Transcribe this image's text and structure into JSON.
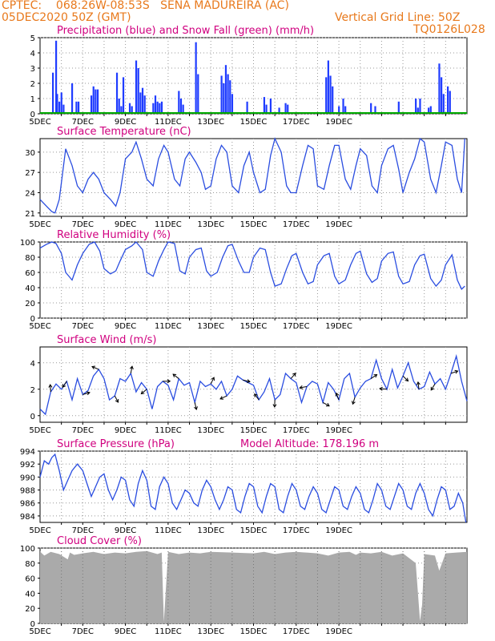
{
  "header": {
    "line1": "CPTEC:    068:26W-08:53S   SENA MADUREIRA (AC)",
    "line2": "05DEC2020 50Z (GMT)",
    "grid_note": "Vertical Grid Line: 50Z",
    "code": "TQ0126L028"
  },
  "x_dates": [
    "5DEC",
    "7DEC",
    "9DEC",
    "11DEC",
    "13DEC",
    "15DEC",
    "17DEC",
    "19DEC"
  ],
  "chart_data": [
    {
      "type": "bar",
      "title": "Precipitation (blue) and Snow Fall (green) (mm/h)",
      "ylim": [
        0,
        5
      ],
      "yticks": [
        0,
        1,
        2,
        3,
        4,
        5
      ],
      "grid": true,
      "series": [
        {
          "color": "#1f3cff",
          "x": [
            0.6,
            0.75,
            0.8,
            0.9,
            1.0,
            1.1,
            1.5,
            1.7,
            1.8,
            2.4,
            2.5,
            2.6,
            2.7,
            3.6,
            3.7,
            3.8,
            3.9,
            4.2,
            4.3,
            4.5,
            4.6,
            4.7,
            4.8,
            4.9,
            5.3,
            5.4,
            5.5,
            5.6,
            5.7,
            6.5,
            6.6,
            6.7,
            7.3,
            7.4,
            8.5,
            8.6,
            8.7,
            8.8,
            8.9,
            9.0,
            9.7,
            10.5,
            10.6,
            10.8,
            11.2,
            11.5,
            11.6,
            13.4,
            13.5,
            13.6,
            13.7,
            14.0,
            14.2,
            14.3,
            15.5,
            15.7,
            16.8,
            17.6,
            17.7,
            17.8,
            18.2,
            18.3,
            18.7,
            18.8,
            18.9,
            19.1,
            19.2
          ],
          "values": [
            2.7,
            4.8,
            1.3,
            0.8,
            1.4,
            0.6,
            2.0,
            0.8,
            0.8,
            1.2,
            1.8,
            1.6,
            1.6,
            2.7,
            1.0,
            0.5,
            2.4,
            0.7,
            0.5,
            3.5,
            3.0,
            1.4,
            1.7,
            1.2,
            0.7,
            1.2,
            0.8,
            0.7,
            0.8,
            1.5,
            1.0,
            0.6,
            4.7,
            2.6,
            2.5,
            2.0,
            3.2,
            2.6,
            2.2,
            1.3,
            0.8,
            1.1,
            0.6,
            1.0,
            0.4,
            0.7,
            0.6,
            2.4,
            3.5,
            2.5,
            1.8,
            0.5,
            1.0,
            0.5,
            0.7,
            0.5,
            0.8,
            1.0,
            0.4,
            1.0,
            0.4,
            0.5,
            3.3,
            2.4,
            1.3,
            1.8,
            1.5
          ]
        },
        {
          "color": "#00aa00",
          "values": [
            0
          ]
        }
      ]
    },
    {
      "type": "line",
      "title": "Surface Temperature (nC)",
      "ylim": [
        20.5,
        32
      ],
      "yticks": [
        21,
        24,
        27,
        30
      ],
      "series": [
        {
          "color": "#2a4de0",
          "x": [
            0,
            0.3,
            0.55,
            0.7,
            0.9,
            1.2,
            1.5,
            1.75,
            2.0,
            2.25,
            2.5,
            2.75,
            3.0,
            3.3,
            3.55,
            3.75,
            4.0,
            4.3,
            4.5,
            4.75,
            5.0,
            5.3,
            5.55,
            5.8,
            6.0,
            6.3,
            6.55,
            6.8,
            7.0,
            7.3,
            7.55,
            7.75,
            8.0,
            8.25,
            8.5,
            8.75,
            9.0,
            9.3,
            9.55,
            9.8,
            10.0,
            10.3,
            10.55,
            10.8,
            11.0,
            11.3,
            11.55,
            11.75,
            12.0,
            12.3,
            12.55,
            12.8,
            13.0,
            13.3,
            13.55,
            13.8,
            14.0,
            14.3,
            14.55,
            14.8,
            15.0,
            15.3,
            15.55,
            15.8,
            16.0,
            16.3,
            16.55,
            16.8,
            17.0,
            17.3,
            17.55,
            17.8,
            18.0,
            18.3,
            18.55,
            18.8,
            19.0,
            19.3,
            19.55,
            19.75,
            19.9
          ],
          "values": [
            23,
            22,
            21.2,
            21,
            23,
            30.5,
            28,
            25,
            24,
            26,
            27,
            26,
            24,
            23,
            22,
            24,
            29,
            30,
            31.5,
            29,
            26,
            25,
            29,
            31,
            30,
            26,
            25,
            29,
            30,
            28.5,
            27,
            24.5,
            25,
            29,
            31,
            30,
            25,
            24,
            28,
            30,
            27,
            24,
            24.5,
            29.5,
            32,
            30,
            25,
            24,
            24,
            28,
            31,
            30.5,
            25,
            24.5,
            28,
            31,
            31,
            26,
            24.5,
            28,
            30.5,
            29.5,
            25,
            24,
            28,
            30.5,
            31,
            27.5,
            24,
            27,
            29,
            32,
            31.5,
            26,
            24,
            28,
            31.5,
            31,
            26,
            24,
            32
          ]
        }
      ]
    },
    {
      "type": "line",
      "title": "Relative Humidity (%)",
      "ylim": [
        0,
        100
      ],
      "yticks": [
        0,
        20,
        40,
        60,
        80,
        100
      ],
      "series": [
        {
          "color": "#2a4de0",
          "x": [
            0,
            0.3,
            0.55,
            0.75,
            1.0,
            1.2,
            1.5,
            1.75,
            2.0,
            2.3,
            2.55,
            2.8,
            3.0,
            3.3,
            3.55,
            3.75,
            4.0,
            4.3,
            4.5,
            4.8,
            5.0,
            5.3,
            5.55,
            5.8,
            6.0,
            6.3,
            6.55,
            6.8,
            7.0,
            7.3,
            7.55,
            7.8,
            8.0,
            8.3,
            8.55,
            8.8,
            9.0,
            9.3,
            9.55,
            9.8,
            10.0,
            10.3,
            10.55,
            10.8,
            11.0,
            11.3,
            11.55,
            11.8,
            12.0,
            12.3,
            12.55,
            12.8,
            13.0,
            13.3,
            13.55,
            13.8,
            14.0,
            14.3,
            14.55,
            14.8,
            15.0,
            15.3,
            15.55,
            15.8,
            16.0,
            16.3,
            16.55,
            16.8,
            17.0,
            17.3,
            17.55,
            17.8,
            18.0,
            18.3,
            18.55,
            18.8,
            19.0,
            19.3,
            19.55,
            19.75,
            19.9
          ],
          "values": [
            92,
            97,
            100,
            98,
            85,
            60,
            50,
            70,
            85,
            97,
            100,
            88,
            65,
            58,
            62,
            75,
            90,
            95,
            100,
            90,
            60,
            55,
            75,
            90,
            100,
            98,
            62,
            58,
            80,
            90,
            92,
            62,
            55,
            60,
            80,
            95,
            97,
            75,
            60,
            60,
            80,
            92,
            90,
            60,
            42,
            45,
            65,
            82,
            85,
            60,
            45,
            48,
            70,
            82,
            85,
            55,
            45,
            50,
            70,
            85,
            88,
            58,
            47,
            52,
            75,
            85,
            87,
            55,
            45,
            48,
            70,
            82,
            84,
            52,
            42,
            50,
            70,
            83,
            50,
            38,
            42
          ]
        }
      ]
    },
    {
      "type": "line",
      "title": "Surface Wind (m/s)",
      "ylim": [
        -0.5,
        5.2
      ],
      "yticks": [
        0,
        2,
        4
      ],
      "series": [
        {
          "color": "#2a4de0",
          "x": [
            0,
            0.25,
            0.5,
            0.75,
            1.0,
            1.25,
            1.5,
            1.75,
            2.0,
            2.25,
            2.5,
            2.75,
            3.0,
            3.25,
            3.5,
            3.75,
            4.0,
            4.25,
            4.5,
            4.75,
            5.0,
            5.25,
            5.5,
            5.75,
            6.0,
            6.25,
            6.5,
            6.75,
            7.0,
            7.25,
            7.5,
            7.75,
            8.0,
            8.25,
            8.5,
            8.75,
            9.0,
            9.25,
            9.5,
            9.75,
            10.0,
            10.25,
            10.5,
            10.75,
            11.0,
            11.25,
            11.5,
            11.75,
            12.0,
            12.25,
            12.5,
            12.75,
            13.0,
            13.25,
            13.5,
            13.75,
            14.0,
            14.25,
            14.5,
            14.75,
            15.0,
            15.25,
            15.5,
            15.75,
            16.0,
            16.25,
            16.5,
            16.75,
            17.0,
            17.25,
            17.5,
            17.75,
            18.0,
            18.25,
            18.5,
            18.75,
            19.0,
            19.25,
            19.5,
            19.75,
            20.0
          ],
          "values": [
            0.5,
            0.1,
            1.8,
            2.4,
            2.0,
            2.6,
            1.2,
            2.8,
            1.6,
            1.9,
            3.0,
            3.5,
            2.8,
            1.2,
            1.5,
            2.8,
            2.6,
            3.2,
            1.8,
            2.5,
            2.0,
            0.5,
            2.2,
            2.6,
            2.3,
            1.2,
            2.8,
            2.3,
            2.5,
            1.0,
            2.6,
            2.2,
            2.4,
            2.0,
            2.6,
            1.5,
            2.0,
            3.0,
            2.7,
            2.5,
            2.3,
            1.2,
            1.8,
            2.8,
            1.2,
            1.6,
            3.2,
            2.8,
            2.5,
            1.0,
            2.2,
            2.6,
            2.4,
            1.0,
            2.5,
            2.0,
            1.2,
            2.8,
            3.2,
            1.4,
            2.1,
            2.6,
            2.8,
            4.2,
            2.8,
            2.0,
            3.5,
            2.1,
            3.0,
            4.0,
            2.6,
            2.0,
            2.2,
            3.3,
            2.4,
            2.8,
            2.0,
            3.2,
            4.5,
            2.6,
            1.1
          ]
        }
      ]
    },
    {
      "type": "line",
      "title": "Surface Pressure (hPa)",
      "annotation": "Model Altitude: 178.196 m",
      "ylim": [
        983,
        994
      ],
      "yticks": [
        984,
        986,
        988,
        990,
        992,
        994
      ],
      "series": [
        {
          "color": "#2a4de0",
          "x": [
            0,
            0.2,
            0.4,
            0.55,
            0.7,
            0.9,
            1.1,
            1.3,
            1.5,
            1.75,
            2.0,
            2.2,
            2.4,
            2.6,
            2.8,
            3.0,
            3.2,
            3.4,
            3.6,
            3.8,
            4.0,
            4.2,
            4.4,
            4.6,
            4.8,
            5.0,
            5.2,
            5.4,
            5.6,
            5.8,
            6.0,
            6.2,
            6.4,
            6.6,
            6.8,
            7.0,
            7.2,
            7.4,
            7.6,
            7.8,
            8.0,
            8.2,
            8.4,
            8.6,
            8.8,
            9.0,
            9.2,
            9.4,
            9.6,
            9.8,
            10.0,
            10.2,
            10.4,
            10.6,
            10.8,
            11.0,
            11.2,
            11.4,
            11.6,
            11.8,
            12.0,
            12.2,
            12.4,
            12.6,
            12.8,
            13.0,
            13.2,
            13.4,
            13.6,
            13.8,
            14.0,
            14.2,
            14.4,
            14.6,
            14.8,
            15.0,
            15.2,
            15.4,
            15.6,
            15.8,
            16.0,
            16.2,
            16.4,
            16.6,
            16.8,
            17.0,
            17.2,
            17.4,
            17.6,
            17.8,
            18.0,
            18.2,
            18.4,
            18.6,
            18.8,
            19.0,
            19.2,
            19.4,
            19.6,
            19.8,
            19.95
          ],
          "values": [
            990,
            992.5,
            992,
            993,
            993.5,
            991,
            988,
            989.5,
            991,
            992,
            991,
            989,
            987,
            988.5,
            990,
            990.5,
            988,
            986.5,
            988,
            990,
            989.5,
            986.5,
            985.5,
            989,
            991,
            989.5,
            985.5,
            985,
            988.5,
            990,
            989,
            986,
            985,
            986.5,
            988,
            987.5,
            986,
            985.5,
            988,
            989.5,
            988.5,
            986.5,
            985,
            986.5,
            988.5,
            988,
            985,
            984.5,
            987,
            989,
            988.5,
            985.5,
            984.5,
            987,
            989,
            988.5,
            985,
            984.5,
            987,
            989,
            988,
            985.5,
            985,
            987,
            988.5,
            987.5,
            985,
            984.5,
            986.5,
            988.5,
            988,
            985.5,
            985,
            987,
            988.5,
            987.5,
            985,
            984.5,
            986.5,
            989,
            988,
            985.5,
            985,
            987,
            989,
            988,
            985.5,
            985,
            987.5,
            989,
            987.5,
            985,
            984,
            986.5,
            988.5,
            988,
            985,
            985.5,
            987.5,
            986,
            983
          ]
        }
      ]
    },
    {
      "type": "area",
      "title": "Cloud Cover (%)",
      "ylim": [
        0,
        100
      ],
      "yticks": [
        0,
        20,
        40,
        60,
        80,
        100
      ],
      "series": [
        {
          "color": "#aaaaaa",
          "x": [
            0,
            0.05,
            0.2,
            0.5,
            0.9,
            1.3,
            1.4,
            1.6,
            2.0,
            2.5,
            3.0,
            3.5,
            4.0,
            4.5,
            5.0,
            5.5,
            5.7,
            5.8,
            6.0,
            6.5,
            7.0,
            7.5,
            8.0,
            9.0,
            10.0,
            10.5,
            11.0,
            11.5,
            12.0,
            13.0,
            13.5,
            14.0,
            14.5,
            14.8,
            15.0,
            15.5,
            16.0,
            16.5,
            17.0,
            17.6,
            17.8,
            17.9,
            18.0,
            18.5,
            18.7,
            19.0,
            19.5,
            20.0
          ],
          "values": [
            96,
            94,
            90,
            95,
            92,
            85,
            94,
            91,
            93,
            95,
            92,
            94,
            93,
            95,
            96,
            92,
            94,
            2,
            95,
            92,
            94,
            93,
            95,
            94,
            93,
            95,
            92,
            94,
            95,
            93,
            90,
            94,
            95,
            91,
            94,
            93,
            95,
            90,
            93,
            80,
            3,
            25,
            92,
            90,
            70,
            93,
            94,
            95
          ]
        }
      ]
    }
  ]
}
